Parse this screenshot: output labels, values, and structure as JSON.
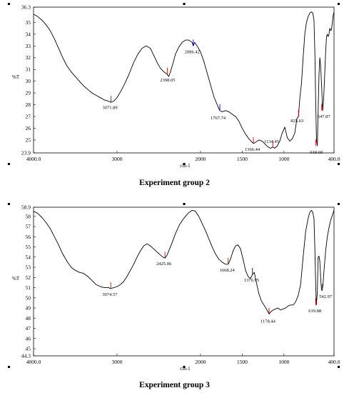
{
  "chart_data": [
    {
      "type": "line",
      "caption": "Experiment group 2",
      "xlabel": "cm-1",
      "ylabel": "%T",
      "xlim": [
        4000.0,
        400.0
      ],
      "ylim": [
        23.9,
        36.3
      ],
      "x_ticks": [
        "4000.0",
        "3000",
        "2000",
        "1500",
        "1000",
        "400.0"
      ],
      "y_ticks": [
        "36.3",
        "35",
        "34",
        "33",
        "32",
        "31",
        "30",
        "29",
        "28",
        "27",
        "26",
        "25",
        "23.9"
      ],
      "series": [
        {
          "x": [
            4000,
            3950,
            3900,
            3850,
            3800,
            3750,
            3700,
            3650,
            3600,
            3550,
            3500,
            3450,
            3400,
            3350,
            3300,
            3250,
            3200,
            3150,
            3100,
            3072,
            3040,
            3000,
            2950,
            2900,
            2850,
            2800,
            2750,
            2700,
            2650,
            2600,
            2560,
            2520,
            2480,
            2440,
            2400,
            2380,
            2360,
            2330,
            2300,
            2260,
            2220,
            2180,
            2140,
            2100,
            2086,
            2070,
            2040,
            2000,
            1960,
            1920,
            1880,
            1840,
            1800,
            1768,
            1740,
            1700,
            1660,
            1620,
            1580,
            1540,
            1500,
            1460,
            1420,
            1380,
            1366,
            1340,
            1300,
            1260,
            1220,
            1190,
            1160,
            1134,
            1110,
            1080,
            1050,
            1020,
            990,
            960,
            930,
            900,
            870,
            845,
            826,
            810,
            790,
            770,
            750,
            730,
            710,
            690,
            670,
            655,
            640,
            628,
            620,
            610,
            600,
            590,
            580,
            570,
            560,
            548,
            536,
            524,
            512,
            500,
            490,
            480,
            470,
            460,
            450,
            440,
            430,
            420,
            410,
            400
          ],
          "y": [
            35.7,
            35.5,
            35.2,
            34.8,
            34.3,
            33.6,
            32.8,
            32.0,
            31.3,
            30.8,
            30.4,
            30.0,
            29.6,
            29.3,
            29.0,
            28.8,
            28.6,
            28.4,
            28.3,
            28.2,
            28.3,
            28.6,
            29.2,
            29.9,
            30.7,
            31.6,
            32.3,
            32.8,
            33.0,
            32.8,
            32.2,
            31.6,
            31.1,
            30.8,
            30.6,
            30.4,
            30.8,
            31.5,
            32.3,
            32.9,
            33.3,
            33.5,
            33.5,
            33.3,
            33.0,
            33.3,
            33.0,
            32.5,
            31.7,
            30.7,
            29.7,
            28.7,
            28.0,
            27.5,
            27.4,
            27.5,
            27.4,
            27.2,
            27.0,
            26.6,
            26.0,
            25.5,
            25.1,
            24.8,
            24.7,
            24.8,
            25.0,
            24.9,
            24.6,
            24.4,
            24.3,
            24.4,
            24.3,
            24.5,
            24.9,
            25.6,
            26.1,
            25.2,
            24.9,
            25.1,
            25.6,
            26.8,
            27.0,
            28.5,
            29.8,
            32.0,
            34.0,
            35.0,
            35.5,
            35.8,
            35.9,
            35.8,
            35.2,
            32.0,
            28.5,
            25.0,
            24.5,
            27.5,
            30.5,
            32.0,
            31.3,
            29.5,
            27.5,
            28.5,
            30.5,
            32.5,
            33.8,
            34.0,
            33.8,
            34.0,
            34.5,
            34.3,
            34.4,
            35.0,
            35.6,
            35.9
          ]
        }
      ],
      "annotations": [
        {
          "label": "3071.89",
          "x": 3071.89,
          "y": 28.2
        },
        {
          "label": "2398.05",
          "x": 2398.05,
          "y": 30.6
        },
        {
          "label": "2086.42",
          "x": 2086.42,
          "y": 33.0
        },
        {
          "label": "1767.74",
          "x": 1767.74,
          "y": 27.5
        },
        {
          "label": "1366.44",
          "x": 1366.44,
          "y": 24.7
        },
        {
          "label": "1134.45",
          "x": 1134.45,
          "y": 24.4
        },
        {
          "label": "825.63",
          "x": 825.63,
          "y": 27.0
        },
        {
          "label": "619.60",
          "x": 619.6,
          "y": 24.5
        },
        {
          "label": "547.87",
          "x": 547.87,
          "y": 27.5
        }
      ]
    },
    {
      "type": "line",
      "caption": "Experiment group 3",
      "xlabel": "cm-1",
      "ylabel": "%T",
      "xlim": [
        4000.0,
        400.0
      ],
      "ylim": [
        44.3,
        58.9
      ],
      "x_ticks": [
        "4000.0",
        "3000",
        "2000",
        "1500",
        "1000",
        "400.0"
      ],
      "y_ticks": [
        "58.9",
        "58",
        "57",
        "56",
        "55",
        "54",
        "53",
        "52",
        "51",
        "50",
        "49",
        "48",
        "47",
        "46",
        "45",
        "44.3"
      ],
      "series": [
        {
          "x": [
            4000,
            3950,
            3900,
            3850,
            3800,
            3750,
            3700,
            3650,
            3600,
            3550,
            3500,
            3450,
            3400,
            3350,
            3300,
            3250,
            3200,
            3150,
            3100,
            3075,
            3040,
            3000,
            2960,
            2920,
            2880,
            2840,
            2800,
            2760,
            2720,
            2680,
            2640,
            2600,
            2560,
            2520,
            2480,
            2450,
            2425,
            2400,
            2350,
            2300,
            2250,
            2200,
            2150,
            2100,
            2060,
            2020,
            1980,
            1940,
            1900,
            1860,
            1820,
            1780,
            1740,
            1700,
            1668,
            1640,
            1610,
            1580,
            1550,
            1520,
            1490,
            1460,
            1430,
            1400,
            1377,
            1355,
            1330,
            1300,
            1270,
            1240,
            1210,
            1190,
            1178,
            1160,
            1130,
            1100,
            1070,
            1040,
            1010,
            980,
            950,
            920,
            890,
            860,
            830,
            800,
            770,
            740,
            710,
            690,
            670,
            655,
            640,
            630,
            620,
            612,
            600,
            590,
            580,
            570,
            560,
            550,
            543,
            532,
            520,
            500,
            480,
            460,
            440,
            420,
            400
          ],
          "y": [
            58.5,
            58.3,
            57.9,
            57.4,
            56.8,
            56.0,
            55.2,
            54.3,
            53.6,
            53.0,
            52.7,
            52.5,
            52.4,
            52.1,
            51.7,
            51.3,
            51.1,
            51.0,
            51.0,
            50.9,
            51.0,
            51.1,
            51.3,
            51.6,
            52.1,
            52.7,
            53.3,
            54.0,
            54.6,
            55.1,
            55.3,
            55.1,
            54.8,
            54.5,
            54.2,
            54.0,
            53.9,
            54.2,
            55.2,
            56.3,
            57.2,
            57.8,
            58.3,
            58.6,
            58.5,
            58.0,
            57.3,
            56.6,
            55.8,
            55.0,
            54.3,
            53.8,
            53.5,
            53.3,
            53.3,
            53.8,
            54.6,
            55.1,
            55.2,
            54.8,
            53.8,
            52.7,
            52.1,
            51.9,
            52.3,
            52.5,
            51.5,
            50.4,
            49.7,
            49.3,
            48.9,
            48.6,
            48.4,
            48.6,
            48.8,
            48.9,
            49.0,
            48.8,
            48.9,
            49.0,
            49.2,
            49.3,
            49.3,
            49.6,
            50.2,
            51.3,
            54.0,
            56.5,
            57.8,
            58.4,
            58.6,
            58.4,
            57.8,
            55.0,
            51.5,
            49.3,
            50.5,
            54.0,
            54.1,
            53.6,
            52.0,
            50.8,
            50.7,
            51.3,
            52.7,
            54.6,
            56.0,
            56.9,
            57.6,
            58.1,
            58.6
          ]
        }
      ],
      "annotations": [
        {
          "label": "3074.57",
          "x": 3074.57,
          "y": 50.9
        },
        {
          "label": "2425.06",
          "x": 2425.06,
          "y": 53.9
        },
        {
          "label": "1668.24",
          "x": 1668.24,
          "y": 53.3
        },
        {
          "label": "1376.95",
          "x": 1376.95,
          "y": 52.3
        },
        {
          "label": "1178.44",
          "x": 1178.44,
          "y": 48.4
        },
        {
          "label": "619.88",
          "x": 619.88,
          "y": 49.3
        },
        {
          "label": "542.97",
          "x": 542.97,
          "y": 50.7
        }
      ]
    }
  ]
}
